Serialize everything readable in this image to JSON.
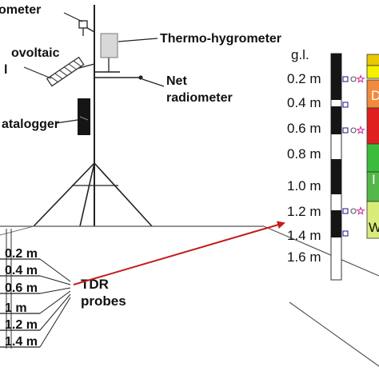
{
  "station_labels": {
    "anemometer": "ometer",
    "pv_line1": "ovoltaic",
    "pv_line2": "l",
    "thermo": "Thermo-hygrometer",
    "net_line1": "Net",
    "net_line2": "radiometer",
    "datalogger": "atalogger"
  },
  "tdr": {
    "line1": "TDR",
    "line2": "probes",
    "depths": [
      "0.2 m",
      "0.4 m",
      "0.6 m",
      "1 m",
      "1.2 m",
      "1.4 m"
    ]
  },
  "profile": {
    "top_label": "g.l.",
    "depths": [
      "0.2 m",
      "0.4 m",
      "0.6 m",
      "0.8 m",
      "1.0 m",
      "1.2 m",
      "1.4 m",
      "1.6 m"
    ]
  },
  "soil_columns": {
    "labels": [
      "D",
      "I",
      "W"
    ],
    "colors": [
      "#e8c800",
      "#f4f000",
      "#f08a3c",
      "#e02020",
      "#3cbc3c",
      "#54b848",
      "#d9ec7a"
    ]
  },
  "marker_colors": {
    "square": "#2a2a8a",
    "circle": "#555555",
    "star": "#d03a9a",
    "arrow": "#c41c1c"
  }
}
